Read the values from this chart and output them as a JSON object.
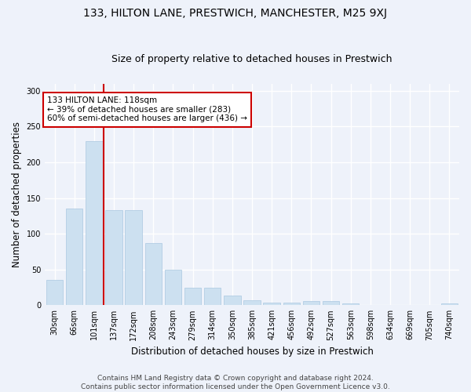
{
  "title": "133, HILTON LANE, PRESTWICH, MANCHESTER, M25 9XJ",
  "subtitle": "Size of property relative to detached houses in Prestwich",
  "xlabel": "Distribution of detached houses by size in Prestwich",
  "ylabel": "Number of detached properties",
  "bar_color": "#cce0f0",
  "bar_edge_color": "#aac8e0",
  "categories": [
    "30sqm",
    "66sqm",
    "101sqm",
    "137sqm",
    "172sqm",
    "208sqm",
    "243sqm",
    "279sqm",
    "314sqm",
    "350sqm",
    "385sqm",
    "421sqm",
    "456sqm",
    "492sqm",
    "527sqm",
    "563sqm",
    "598sqm",
    "634sqm",
    "669sqm",
    "705sqm",
    "740sqm"
  ],
  "values": [
    35,
    135,
    230,
    133,
    133,
    87,
    50,
    25,
    25,
    13,
    7,
    4,
    4,
    6,
    6,
    2,
    0,
    0,
    0,
    0,
    3
  ],
  "ylim": [
    0,
    310
  ],
  "yticks": [
    0,
    50,
    100,
    150,
    200,
    250,
    300
  ],
  "vline_x": 2.5,
  "vline_color": "#cc0000",
  "annotation_text": "133 HILTON LANE: 118sqm\n← 39% of detached houses are smaller (283)\n60% of semi-detached houses are larger (436) →",
  "annotation_box_color": "white",
  "annotation_box_edge_color": "#cc0000",
  "footer_text": "Contains HM Land Registry data © Crown copyright and database right 2024.\nContains public sector information licensed under the Open Government Licence v3.0.",
  "background_color": "#eef2fa",
  "plot_bg_color": "#eef2fa",
  "grid_color": "#ffffff",
  "title_fontsize": 10,
  "subtitle_fontsize": 9,
  "xlabel_fontsize": 8.5,
  "ylabel_fontsize": 8.5,
  "footer_fontsize": 6.5,
  "tick_fontsize": 7,
  "annot_fontsize": 7.5
}
